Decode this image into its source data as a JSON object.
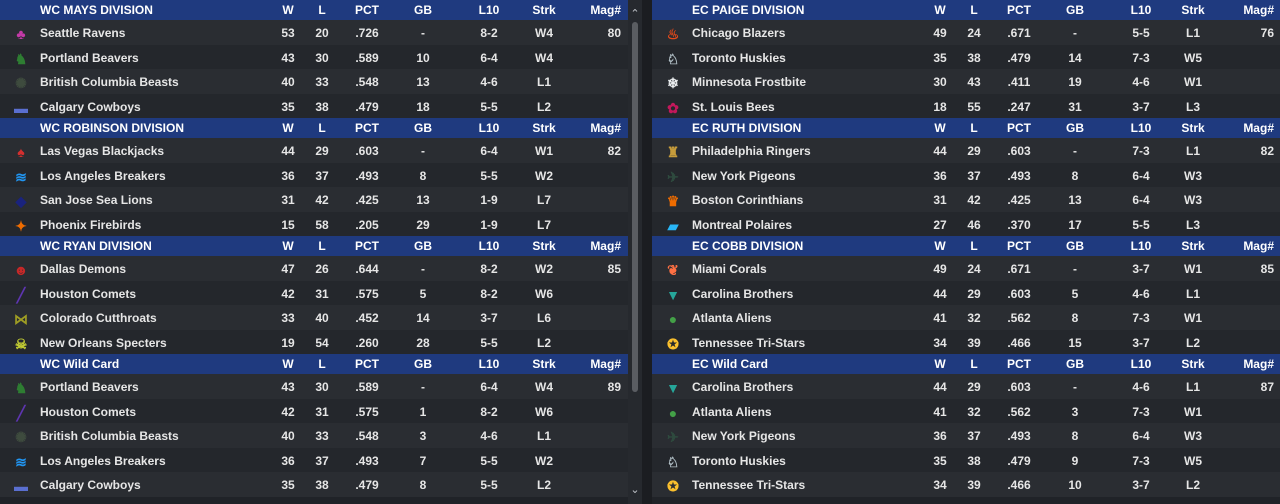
{
  "columns": {
    "w": "W",
    "l": "L",
    "pct": "PCT",
    "gb": "GB",
    "l10": "L10",
    "strk": "Strk",
    "mag": "Mag#"
  },
  "left": [
    {
      "name": "WC MAYS DIVISION",
      "rows": [
        {
          "team": "Seattle Ravens",
          "logo": "♣",
          "color": "#c43aa8",
          "w": "53",
          "l": "20",
          "pct": ".726",
          "gb": "-",
          "l10": "8-2",
          "strk": "W4",
          "mag": "80"
        },
        {
          "team": "Portland Beavers",
          "logo": "♞",
          "color": "#2e7d32",
          "w": "43",
          "l": "30",
          "pct": ".589",
          "gb": "10",
          "l10": "6-4",
          "strk": "W4",
          "mag": ""
        },
        {
          "team": "British Columbia Beasts",
          "logo": "✺",
          "color": "#3e4b3e",
          "w": "40",
          "l": "33",
          "pct": ".548",
          "gb": "13",
          "l10": "4-6",
          "strk": "L1",
          "mag": ""
        },
        {
          "team": "Calgary Cowboys",
          "logo": "▬",
          "color": "#5a6fd0",
          "w": "35",
          "l": "38",
          "pct": ".479",
          "gb": "18",
          "l10": "5-5",
          "strk": "L2",
          "mag": ""
        }
      ]
    },
    {
      "name": "WC ROBINSON DIVISION",
      "rows": [
        {
          "team": "Las Vegas Blackjacks",
          "logo": "♠",
          "color": "#d32f2f",
          "w": "44",
          "l": "29",
          "pct": ".603",
          "gb": "-",
          "l10": "6-4",
          "strk": "W1",
          "mag": "82"
        },
        {
          "team": "Los Angeles Breakers",
          "logo": "≋",
          "color": "#2196f3",
          "w": "36",
          "l": "37",
          "pct": ".493",
          "gb": "8",
          "l10": "5-5",
          "strk": "W2",
          "mag": ""
        },
        {
          "team": "San Jose Sea Lions",
          "logo": "◆",
          "color": "#1a237e",
          "w": "31",
          "l": "42",
          "pct": ".425",
          "gb": "13",
          "l10": "1-9",
          "strk": "L7",
          "mag": ""
        },
        {
          "team": "Phoenix Firebirds",
          "logo": "✦",
          "color": "#ef6c00",
          "w": "15",
          "l": "58",
          "pct": ".205",
          "gb": "29",
          "l10": "1-9",
          "strk": "L7",
          "mag": ""
        }
      ]
    },
    {
      "name": "WC RYAN DIVISION",
      "rows": [
        {
          "team": "Dallas Demons",
          "logo": "☻",
          "color": "#c62828",
          "w": "47",
          "l": "26",
          "pct": ".644",
          "gb": "-",
          "l10": "8-2",
          "strk": "W2",
          "mag": "85"
        },
        {
          "team": "Houston Comets",
          "logo": "╱",
          "color": "#5e35b1",
          "w": "42",
          "l": "31",
          "pct": ".575",
          "gb": "5",
          "l10": "8-2",
          "strk": "W6",
          "mag": ""
        },
        {
          "team": "Colorado Cutthroats",
          "logo": "⋈",
          "color": "#9e9d24",
          "w": "33",
          "l": "40",
          "pct": ".452",
          "gb": "14",
          "l10": "3-7",
          "strk": "L6",
          "mag": ""
        },
        {
          "team": "New Orleans Specters",
          "logo": "☠",
          "color": "#c0ca33",
          "w": "19",
          "l": "54",
          "pct": ".260",
          "gb": "28",
          "l10": "5-5",
          "strk": "L2",
          "mag": ""
        }
      ]
    },
    {
      "name": "WC  Wild Card",
      "rows": [
        {
          "team": "Portland Beavers",
          "logo": "♞",
          "color": "#2e7d32",
          "w": "43",
          "l": "30",
          "pct": ".589",
          "gb": "-",
          "l10": "6-4",
          "strk": "W4",
          "mag": "89"
        },
        {
          "team": "Houston Comets",
          "logo": "╱",
          "color": "#5e35b1",
          "w": "42",
          "l": "31",
          "pct": ".575",
          "gb": "1",
          "l10": "8-2",
          "strk": "W6",
          "mag": ""
        },
        {
          "team": "British Columbia Beasts",
          "logo": "✺",
          "color": "#3e4b3e",
          "w": "40",
          "l": "33",
          "pct": ".548",
          "gb": "3",
          "l10": "4-6",
          "strk": "L1",
          "mag": ""
        },
        {
          "team": "Los Angeles Breakers",
          "logo": "≋",
          "color": "#2196f3",
          "w": "36",
          "l": "37",
          "pct": ".493",
          "gb": "7",
          "l10": "5-5",
          "strk": "W2",
          "mag": ""
        },
        {
          "team": "Calgary Cowboys",
          "logo": "▬",
          "color": "#5a6fd0",
          "w": "35",
          "l": "38",
          "pct": ".479",
          "gb": "8",
          "l10": "5-5",
          "strk": "L2",
          "mag": ""
        }
      ]
    }
  ],
  "right": [
    {
      "name": "EC PAIGE DIVISION",
      "rows": [
        {
          "team": "Chicago Blazers",
          "logo": "♨",
          "color": "#e64a19",
          "w": "49",
          "l": "24",
          "pct": ".671",
          "gb": "-",
          "l10": "5-5",
          "strk": "L1",
          "mag": "76"
        },
        {
          "team": "Toronto Huskies",
          "logo": "♘",
          "color": "#b0bec5",
          "w": "35",
          "l": "38",
          "pct": ".479",
          "gb": "14",
          "l10": "7-3",
          "strk": "W5",
          "mag": ""
        },
        {
          "team": "Minnesota Frostbite",
          "logo": "❄",
          "color": "#eceff1",
          "w": "30",
          "l": "43",
          "pct": ".411",
          "gb": "19",
          "l10": "4-6",
          "strk": "W1",
          "mag": ""
        },
        {
          "team": "St. Louis Bees",
          "logo": "✿",
          "color": "#c2185b",
          "w": "18",
          "l": "55",
          "pct": ".247",
          "gb": "31",
          "l10": "3-7",
          "strk": "L3",
          "mag": ""
        }
      ]
    },
    {
      "name": "EC RUTH DIVISION",
      "rows": [
        {
          "team": "Philadelphia Ringers",
          "logo": "♜",
          "color": "#c69c3b",
          "w": "44",
          "l": "29",
          "pct": ".603",
          "gb": "-",
          "l10": "7-3",
          "strk": "L1",
          "mag": "82"
        },
        {
          "team": "New York Pigeons",
          "logo": "✈",
          "color": "#2e4a3e",
          "w": "36",
          "l": "37",
          "pct": ".493",
          "gb": "8",
          "l10": "6-4",
          "strk": "W3",
          "mag": ""
        },
        {
          "team": "Boston Corinthians",
          "logo": "♛",
          "color": "#ef6c00",
          "w": "31",
          "l": "42",
          "pct": ".425",
          "gb": "13",
          "l10": "6-4",
          "strk": "W3",
          "mag": ""
        },
        {
          "team": "Montreal Polaires",
          "logo": "▰",
          "color": "#29b6f6",
          "w": "27",
          "l": "46",
          "pct": ".370",
          "gb": "17",
          "l10": "5-5",
          "strk": "L3",
          "mag": ""
        }
      ]
    },
    {
      "name": "EC COBB DIVISION",
      "rows": [
        {
          "team": "Miami Corals",
          "logo": "❦",
          "color": "#ff7043",
          "w": "49",
          "l": "24",
          "pct": ".671",
          "gb": "-",
          "l10": "3-7",
          "strk": "W1",
          "mag": "85"
        },
        {
          "team": "Carolina Brothers",
          "logo": "▼",
          "color": "#26a69a",
          "w": "44",
          "l": "29",
          "pct": ".603",
          "gb": "5",
          "l10": "4-6",
          "strk": "L1",
          "mag": ""
        },
        {
          "team": "Atlanta Aliens",
          "logo": "●",
          "color": "#43a047",
          "w": "41",
          "l": "32",
          "pct": ".562",
          "gb": "8",
          "l10": "7-3",
          "strk": "W1",
          "mag": ""
        },
        {
          "team": "Tennessee Tri-Stars",
          "logo": "✪",
          "color": "#fbc02d",
          "w": "34",
          "l": "39",
          "pct": ".466",
          "gb": "15",
          "l10": "3-7",
          "strk": "L2",
          "mag": ""
        }
      ]
    },
    {
      "name": "EC  Wild Card",
      "rows": [
        {
          "team": "Carolina Brothers",
          "logo": "▼",
          "color": "#26a69a",
          "w": "44",
          "l": "29",
          "pct": ".603",
          "gb": "-",
          "l10": "4-6",
          "strk": "L1",
          "mag": "87"
        },
        {
          "team": "Atlanta Aliens",
          "logo": "●",
          "color": "#43a047",
          "w": "41",
          "l": "32",
          "pct": ".562",
          "gb": "3",
          "l10": "7-3",
          "strk": "W1",
          "mag": ""
        },
        {
          "team": "New York Pigeons",
          "logo": "✈",
          "color": "#2e4a3e",
          "w": "36",
          "l": "37",
          "pct": ".493",
          "gb": "8",
          "l10": "6-4",
          "strk": "W3",
          "mag": ""
        },
        {
          "team": "Toronto Huskies",
          "logo": "♘",
          "color": "#b0bec5",
          "w": "35",
          "l": "38",
          "pct": ".479",
          "gb": "9",
          "l10": "7-3",
          "strk": "W5",
          "mag": ""
        },
        {
          "team": "Tennessee Tri-Stars",
          "logo": "✪",
          "color": "#fbc02d",
          "w": "34",
          "l": "39",
          "pct": ".466",
          "gb": "10",
          "l10": "3-7",
          "strk": "L2",
          "mag": ""
        }
      ]
    }
  ],
  "scroll": {
    "up": "⌃",
    "down": "⌄"
  }
}
